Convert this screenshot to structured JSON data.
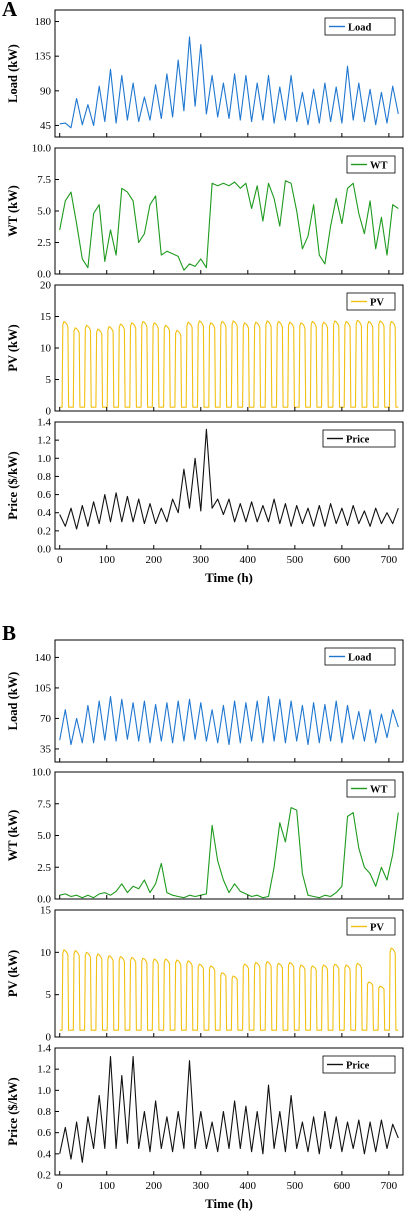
{
  "colors": {
    "load": "#1f77d0",
    "wt": "#1e9a1e",
    "pv": "#f2c010",
    "price": "#111111"
  },
  "panels": [
    {
      "label": "A",
      "xlabel": "Time (h)",
      "xticks": [
        0,
        100,
        200,
        300,
        400,
        500,
        600,
        700
      ]
    },
    {
      "label": "B",
      "xlabel": "Time (h)",
      "xticks": [
        0,
        100,
        200,
        300,
        400,
        500,
        600,
        700
      ]
    }
  ],
  "chart_data": [
    {
      "panel": "A",
      "type": "line",
      "ylabel": "Load (kW)",
      "legend": "Load",
      "color": "#1f77d0",
      "xlim": [
        -10,
        730
      ],
      "ylim": [
        30,
        195
      ],
      "yticks": [
        45,
        90,
        135,
        180
      ],
      "x": [
        0,
        12,
        24,
        36,
        48,
        60,
        72,
        84,
        96,
        108,
        120,
        132,
        144,
        156,
        168,
        180,
        192,
        204,
        216,
        228,
        240,
        252,
        264,
        276,
        288,
        300,
        312,
        324,
        336,
        348,
        360,
        372,
        384,
        396,
        408,
        420,
        432,
        444,
        456,
        468,
        480,
        492,
        504,
        516,
        528,
        540,
        552,
        564,
        576,
        588,
        600,
        612,
        624,
        636,
        648,
        660,
        672,
        684,
        696,
        708,
        720
      ],
      "y": [
        47,
        48,
        42,
        80,
        46,
        72,
        45,
        96,
        50,
        118,
        48,
        110,
        52,
        100,
        50,
        82,
        52,
        98,
        54,
        112,
        56,
        130,
        64,
        160,
        70,
        150,
        60,
        110,
        56,
        100,
        54,
        112,
        52,
        110,
        50,
        100,
        52,
        110,
        48,
        95,
        52,
        110,
        50,
        88,
        46,
        92,
        48,
        100,
        50,
        95,
        48,
        122,
        52,
        100,
        50,
        92,
        46,
        88,
        48,
        96,
        60
      ]
    },
    {
      "panel": "A",
      "type": "line",
      "ylabel": "WT (kW)",
      "legend": "WT",
      "color": "#1e9a1e",
      "xlim": [
        -10,
        730
      ],
      "ylim": [
        0,
        10
      ],
      "yticks": [
        0.0,
        2.5,
        5.0,
        7.5,
        10.0
      ],
      "x": [
        0,
        12,
        24,
        36,
        48,
        60,
        72,
        84,
        96,
        108,
        120,
        132,
        144,
        156,
        168,
        180,
        192,
        204,
        216,
        228,
        240,
        252,
        264,
        276,
        288,
        300,
        312,
        324,
        336,
        348,
        360,
        372,
        384,
        396,
        408,
        420,
        432,
        444,
        456,
        468,
        480,
        492,
        504,
        516,
        528,
        540,
        552,
        564,
        576,
        588,
        600,
        612,
        624,
        636,
        648,
        660,
        672,
        684,
        696,
        708,
        720
      ],
      "y": [
        3.5,
        5.8,
        6.5,
        4.0,
        1.2,
        0.5,
        4.8,
        5.5,
        1.0,
        3.5,
        1.5,
        6.8,
        6.5,
        5.8,
        2.5,
        3.2,
        5.5,
        6.2,
        1.5,
        1.8,
        1.6,
        1.4,
        0.3,
        0.8,
        0.6,
        1.2,
        0.5,
        7.2,
        7.0,
        7.2,
        7.0,
        7.3,
        6.8,
        7.2,
        5.2,
        7.0,
        4.2,
        7.2,
        6.0,
        3.8,
        7.4,
        7.2,
        5.0,
        2.0,
        3.0,
        5.5,
        1.5,
        0.8,
        3.8,
        6.0,
        4.0,
        6.8,
        7.2,
        4.8,
        3.2,
        5.8,
        2.0,
        4.5,
        1.5,
        5.5,
        5.2
      ]
    },
    {
      "panel": "A",
      "type": "line",
      "ylabel": "PV (kW)",
      "legend": "PV",
      "color": "#f2c010",
      "xlim": [
        -10,
        730
      ],
      "ylim": [
        0,
        20
      ],
      "yticks": [
        0,
        5,
        10,
        15,
        20
      ],
      "period": 24,
      "base": 0.6,
      "daily_peaks": [
        14.2,
        13.2,
        13.6,
        13.0,
        13.4,
        13.8,
        14.0,
        14.2,
        14.0,
        13.6,
        12.8,
        14.1,
        14.3,
        14.0,
        14.2,
        14.3,
        14.0,
        14.1,
        14.3,
        14.2,
        14.1,
        14.0,
        14.2,
        14.1,
        14.3,
        14.2,
        14.4,
        14.2,
        14.3,
        14.2
      ]
    },
    {
      "panel": "A",
      "type": "line",
      "ylabel": "Price ($/kW)",
      "legend": "Price",
      "color": "#111111",
      "xlim": [
        -10,
        730
      ],
      "ylim": [
        0.0,
        1.4
      ],
      "yticks": [
        0.0,
        0.2,
        0.4,
        0.6,
        0.8,
        1.0,
        1.2,
        1.4
      ],
      "x": [
        0,
        12,
        24,
        36,
        48,
        60,
        72,
        84,
        96,
        108,
        120,
        132,
        144,
        156,
        168,
        180,
        192,
        204,
        216,
        228,
        240,
        252,
        264,
        276,
        288,
        300,
        312,
        324,
        336,
        348,
        360,
        372,
        384,
        396,
        408,
        420,
        432,
        444,
        456,
        468,
        480,
        492,
        504,
        516,
        528,
        540,
        552,
        564,
        576,
        588,
        600,
        612,
        624,
        636,
        648,
        660,
        672,
        684,
        696,
        708,
        720
      ],
      "y": [
        0.38,
        0.25,
        0.45,
        0.22,
        0.48,
        0.25,
        0.52,
        0.28,
        0.6,
        0.3,
        0.62,
        0.3,
        0.58,
        0.3,
        0.55,
        0.28,
        0.5,
        0.28,
        0.45,
        0.3,
        0.55,
        0.4,
        0.88,
        0.45,
        1.0,
        0.42,
        1.32,
        0.45,
        0.55,
        0.38,
        0.55,
        0.3,
        0.5,
        0.3,
        0.52,
        0.3,
        0.48,
        0.3,
        0.55,
        0.28,
        0.5,
        0.25,
        0.48,
        0.28,
        0.45,
        0.25,
        0.48,
        0.25,
        0.5,
        0.28,
        0.45,
        0.26,
        0.48,
        0.28,
        0.42,
        0.25,
        0.45,
        0.28,
        0.4,
        0.28,
        0.45
      ]
    },
    {
      "panel": "B",
      "type": "line",
      "ylabel": "Load (kW)",
      "legend": "Load",
      "color": "#1f77d0",
      "xlim": [
        -10,
        730
      ],
      "ylim": [
        20,
        160
      ],
      "yticks": [
        35,
        70,
        105,
        140
      ],
      "x": [
        0,
        12,
        24,
        36,
        48,
        60,
        72,
        84,
        96,
        108,
        120,
        132,
        144,
        156,
        168,
        180,
        192,
        204,
        216,
        228,
        240,
        252,
        264,
        276,
        288,
        300,
        312,
        324,
        336,
        348,
        360,
        372,
        384,
        396,
        408,
        420,
        432,
        444,
        456,
        468,
        480,
        492,
        504,
        516,
        528,
        540,
        552,
        564,
        576,
        588,
        600,
        612,
        624,
        636,
        648,
        660,
        672,
        684,
        696,
        708,
        720
      ],
      "y": [
        45,
        80,
        40,
        70,
        42,
        85,
        42,
        90,
        45,
        95,
        44,
        92,
        46,
        88,
        44,
        90,
        42,
        86,
        44,
        88,
        42,
        90,
        44,
        92,
        46,
        88,
        44,
        80,
        42,
        85,
        40,
        90,
        42,
        88,
        44,
        90,
        42,
        95,
        44,
        92,
        42,
        90,
        44,
        85,
        40,
        88,
        42,
        86,
        44,
        90,
        42,
        85,
        46,
        78,
        44,
        80,
        42,
        75,
        48,
        80,
        60
      ]
    },
    {
      "panel": "B",
      "type": "line",
      "ylabel": "WT (kW)",
      "legend": "WT",
      "color": "#1e9a1e",
      "xlim": [
        -10,
        730
      ],
      "ylim": [
        0,
        10
      ],
      "yticks": [
        0.0,
        2.5,
        5.0,
        7.5,
        10.0
      ],
      "x": [
        0,
        12,
        24,
        36,
        48,
        60,
        72,
        84,
        96,
        108,
        120,
        132,
        144,
        156,
        168,
        180,
        192,
        204,
        216,
        228,
        240,
        252,
        264,
        276,
        288,
        300,
        312,
        324,
        336,
        348,
        360,
        372,
        384,
        396,
        408,
        420,
        432,
        444,
        456,
        468,
        480,
        492,
        504,
        516,
        528,
        540,
        552,
        564,
        576,
        588,
        600,
        612,
        624,
        636,
        648,
        660,
        672,
        684,
        696,
        708,
        720
      ],
      "y": [
        0.3,
        0.4,
        0.2,
        0.3,
        0.1,
        0.3,
        0.1,
        0.4,
        0.5,
        0.3,
        0.6,
        1.2,
        0.5,
        1.0,
        0.8,
        1.5,
        0.5,
        1.2,
        2.8,
        0.5,
        0.3,
        0.2,
        0.1,
        0.3,
        0.2,
        0.3,
        0.4,
        5.8,
        3.0,
        1.5,
        0.5,
        1.2,
        0.6,
        0.4,
        0.2,
        0.3,
        0.1,
        0.2,
        2.5,
        6.0,
        4.5,
        7.2,
        7.0,
        2.0,
        0.3,
        0.2,
        0.1,
        0.3,
        0.2,
        0.5,
        1.0,
        6.5,
        6.8,
        4.0,
        2.5,
        2.0,
        1.0,
        2.5,
        1.5,
        3.5,
        6.8
      ]
    },
    {
      "panel": "B",
      "type": "line",
      "ylabel": "PV (kW)",
      "legend": "PV",
      "color": "#f2c010",
      "xlim": [
        -10,
        730
      ],
      "ylim": [
        0,
        15
      ],
      "yticks": [
        0,
        5,
        10,
        15
      ],
      "period": 24,
      "base": 0.8,
      "daily_peaks": [
        10.3,
        10.2,
        10.0,
        9.8,
        9.6,
        9.5,
        9.4,
        9.3,
        9.2,
        9.2,
        9.1,
        9.0,
        8.6,
        8.4,
        7.6,
        7.2,
        8.6,
        8.8,
        8.9,
        8.7,
        8.8,
        8.5,
        8.4,
        8.5,
        8.6,
        8.5,
        8.7,
        6.5,
        6.0,
        10.5,
        2.5
      ]
    },
    {
      "panel": "B",
      "type": "line",
      "ylabel": "Price ($/kW)",
      "legend": "Price",
      "color": "#111111",
      "xlim": [
        -10,
        730
      ],
      "ylim": [
        0.2,
        1.4
      ],
      "yticks": [
        0.2,
        0.4,
        0.6,
        0.8,
        1.0,
        1.2,
        1.4
      ],
      "x": [
        0,
        12,
        24,
        36,
        48,
        60,
        72,
        84,
        96,
        108,
        120,
        132,
        144,
        156,
        168,
        180,
        192,
        204,
        216,
        228,
        240,
        252,
        264,
        276,
        288,
        300,
        312,
        324,
        336,
        348,
        360,
        372,
        384,
        396,
        408,
        420,
        432,
        444,
        456,
        468,
        480,
        492,
        504,
        516,
        528,
        540,
        552,
        564,
        576,
        588,
        600,
        612,
        624,
        636,
        648,
        660,
        672,
        684,
        696,
        708,
        720
      ],
      "y": [
        0.4,
        0.65,
        0.35,
        0.7,
        0.32,
        0.75,
        0.45,
        0.95,
        0.45,
        1.32,
        0.45,
        1.14,
        0.5,
        1.32,
        0.45,
        0.8,
        0.42,
        0.9,
        0.45,
        0.75,
        0.42,
        0.8,
        0.45,
        1.28,
        0.45,
        0.8,
        0.45,
        0.7,
        0.42,
        0.8,
        0.45,
        0.9,
        0.45,
        0.85,
        0.42,
        0.8,
        0.4,
        1.05,
        0.45,
        0.8,
        0.42,
        0.95,
        0.45,
        0.7,
        0.42,
        0.75,
        0.4,
        0.8,
        0.45,
        0.75,
        0.42,
        0.7,
        0.45,
        0.72,
        0.4,
        0.7,
        0.42,
        0.72,
        0.45,
        0.68,
        0.55
      ]
    }
  ]
}
